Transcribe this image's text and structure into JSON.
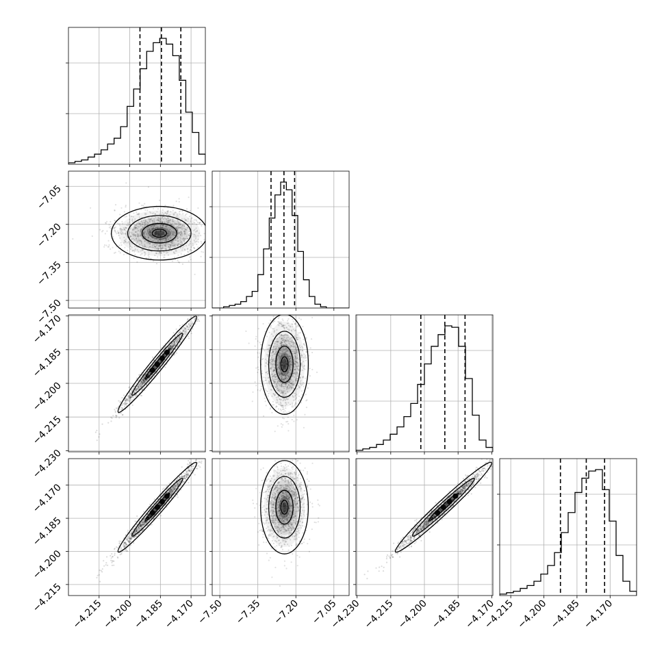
{
  "chart_data": {
    "type": "corner",
    "parameters": 4,
    "quantile_lines": "dashed",
    "grid": true,
    "axes": [
      {
        "ticks": [
          -4.215,
          -4.2,
          -4.185,
          -4.17
        ],
        "tick_labels": [
          "−4.215",
          "−4.200",
          "−4.185",
          "−4.170"
        ],
        "range": [
          -4.23,
          -4.163
        ]
      },
      {
        "ticks": [
          -7.5,
          -7.35,
          -7.2,
          -7.05
        ],
        "tick_labels": [
          "−7.50",
          "−7.35",
          "−7.20",
          "−7.05"
        ],
        "range": [
          -7.53,
          -6.99
        ]
      },
      {
        "ticks": [
          -4.23,
          -4.215,
          -4.2,
          -4.185,
          -4.17
        ],
        "tick_labels": [
          "−4.230",
          "−4.215",
          "−4.200",
          "−4.185",
          "−4.170"
        ],
        "range": [
          -4.2305,
          -4.1695
        ]
      },
      {
        "ticks": [
          -4.215,
          -4.2,
          -4.185,
          -4.17
        ],
        "tick_labels": [
          "−4.215",
          "−4.200",
          "−4.185",
          "−4.170"
        ],
        "range": [
          -4.22,
          -4.158
        ]
      }
    ],
    "histograms": [
      {
        "param": 0,
        "bin_start": -4.23,
        "bin_end": -4.163,
        "counts": [
          1,
          2,
          3,
          5,
          7,
          10,
          14,
          18,
          26,
          40,
          52,
          66,
          78,
          84,
          87,
          83,
          75,
          58,
          36,
          22,
          7
        ],
        "quantiles": [
          -4.195,
          -4.1845,
          -4.175
        ]
      },
      {
        "param": 1,
        "bin_start": -7.53,
        "bin_end": -6.99,
        "counts": [
          0,
          0,
          1,
          2,
          3,
          5,
          9,
          13,
          26,
          46,
          70,
          88,
          98,
          92,
          72,
          44,
          22,
          9,
          3,
          1,
          0,
          0,
          0,
          0
        ],
        "quantiles": [
          -7.298,
          -7.247,
          -7.205
        ]
      },
      {
        "param": 2,
        "bin_start": -4.2305,
        "bin_end": -4.1695,
        "counts": [
          1,
          2,
          3,
          5,
          8,
          12,
          17,
          24,
          33,
          46,
          60,
          72,
          80,
          86,
          85,
          72,
          50,
          25,
          8,
          3
        ],
        "quantiles": [
          -4.2016,
          -4.1909,
          -4.1819
        ]
      },
      {
        "param": 3,
        "bin_start": -4.22,
        "bin_end": -4.158,
        "counts": [
          1,
          2,
          3,
          5,
          7,
          10,
          15,
          21,
          30,
          44,
          58,
          72,
          82,
          87,
          88,
          74,
          52,
          28,
          10,
          3
        ],
        "quantiles": [
          -4.1925,
          -4.1808,
          -4.1725
        ]
      }
    ],
    "scatter_panels": [
      {
        "x_param": 0,
        "y_param": 1,
        "shape": "blob",
        "center": [
          -4.1855,
          -7.235
        ],
        "spread": [
          0.01,
          0.045
        ],
        "correlation": 0.0
      },
      {
        "x_param": 0,
        "y_param": 2,
        "shape": "line",
        "center": [
          -4.1865,
          -4.1915
        ],
        "spread": [
          0.0085,
          0.0095
        ],
        "correlation": 0.998
      },
      {
        "x_param": 1,
        "y_param": 2,
        "shape": "blob",
        "center": [
          -7.245,
          -4.1915
        ],
        "spread": [
          0.04,
          0.0095
        ],
        "correlation": 0.0
      },
      {
        "x_param": 0,
        "y_param": 3,
        "shape": "line",
        "center": [
          -4.1865,
          -4.18
        ],
        "spread": [
          0.0085,
          0.009
        ],
        "correlation": 0.998
      },
      {
        "x_param": 1,
        "y_param": 3,
        "shape": "blob",
        "center": [
          -7.245,
          -4.18
        ],
        "spread": [
          0.04,
          0.009
        ],
        "correlation": 0.0
      },
      {
        "x_param": 2,
        "y_param": 3,
        "shape": "line",
        "center": [
          -4.1915,
          -4.18
        ],
        "spread": [
          0.0095,
          0.009
        ],
        "correlation": 0.998
      }
    ]
  }
}
